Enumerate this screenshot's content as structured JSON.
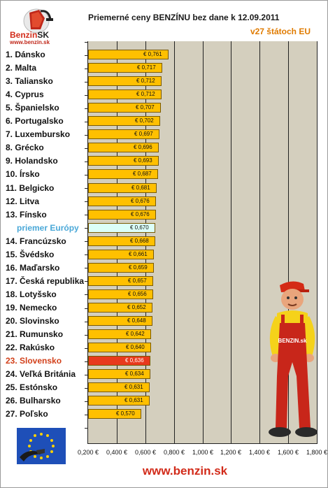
{
  "header": {
    "logo_text_main": "Benzin",
    "logo_text_sk": "SK",
    "logo_url": "www.benzin.sk",
    "title": "Priemerné ceny BENZÍNU bez dane k 12.09.2011",
    "subtitle": "v27 štátoch EU"
  },
  "footer": {
    "url": "www.benzin.sk"
  },
  "mascot": {
    "badge_text": "BENZIN.sk"
  },
  "colors": {
    "bar": "#ffc000",
    "bar_highlight": "#e8391d",
    "bar_average": "#dcfff8",
    "label_highlight": "#d2401a",
    "label_average": "#4aa8d8",
    "plot_background": "#d4cfbe"
  },
  "chart_data": {
    "type": "bar",
    "orientation": "horizontal",
    "title": "Priemerné ceny BENZÍNU bez dane k 12.09.2011",
    "subtitle": "v27 štátoch EU",
    "categories": [
      "1. Dánsko",
      "2. Malta",
      "3. Taliansko",
      "4. Cyprus",
      "5. Španielsko",
      "6. Portugalsko",
      "7. Luxembursko",
      "8. Grécko",
      "9. Holandsko",
      "10. Írsko",
      "11. Belgicko",
      "12. Litva",
      "13. Fínsko",
      "priemer Európy",
      "14. Francúzsko",
      "15. Švédsko",
      "16. Maďarsko",
      "17. Česká republika",
      "18. Lotyšsko",
      "19. Nemecko",
      "20. Slovinsko",
      "21. Rumunsko",
      "22. Rakúsko",
      "23. Slovensko",
      "24. Veľká Británia",
      "25. Estónsko",
      "26. Bulharsko",
      "27. Poľsko"
    ],
    "values": [
      0.761,
      0.717,
      0.712,
      0.712,
      0.707,
      0.702,
      0.697,
      0.696,
      0.693,
      0.687,
      0.681,
      0.676,
      0.676,
      0.67,
      0.668,
      0.661,
      0.659,
      0.657,
      0.656,
      0.652,
      0.648,
      0.642,
      0.64,
      0.636,
      0.634,
      0.631,
      0.631,
      0.57
    ],
    "value_labels": [
      "€ 0,761",
      "€ 0,717",
      "€ 0,712",
      "€ 0,712",
      "€ 0,707",
      "€ 0,702",
      "€ 0,697",
      "€ 0,696",
      "€ 0,693",
      "€ 0,687",
      "€ 0,681",
      "€ 0,676",
      "€ 0,676",
      "€ 0,670",
      "€ 0,668",
      "€ 0,661",
      "€ 0,659",
      "€ 0,657",
      "€ 0,656",
      "€ 0,652",
      "€ 0,648",
      "€ 0,642",
      "€ 0,640",
      "€ 0,636",
      "€ 0,634",
      "€ 0,631",
      "€ 0,631",
      "€ 0,570"
    ],
    "highlight_category": "23. Slovensko",
    "average_category": "priemer Európy",
    "xlim": [
      0.2,
      1.8
    ],
    "xticks": [
      0.2,
      0.4,
      0.6,
      0.8,
      1.0,
      1.2,
      1.4,
      1.6,
      1.8
    ],
    "xtick_labels": [
      "0,200 €",
      "0,400 €",
      "0,600 €",
      "0,800 €",
      "1,000 €",
      "1,200 €",
      "1,400 €",
      "1,600 €",
      "1,800 €"
    ],
    "xlabel": "",
    "ylabel": "",
    "grid": true
  }
}
